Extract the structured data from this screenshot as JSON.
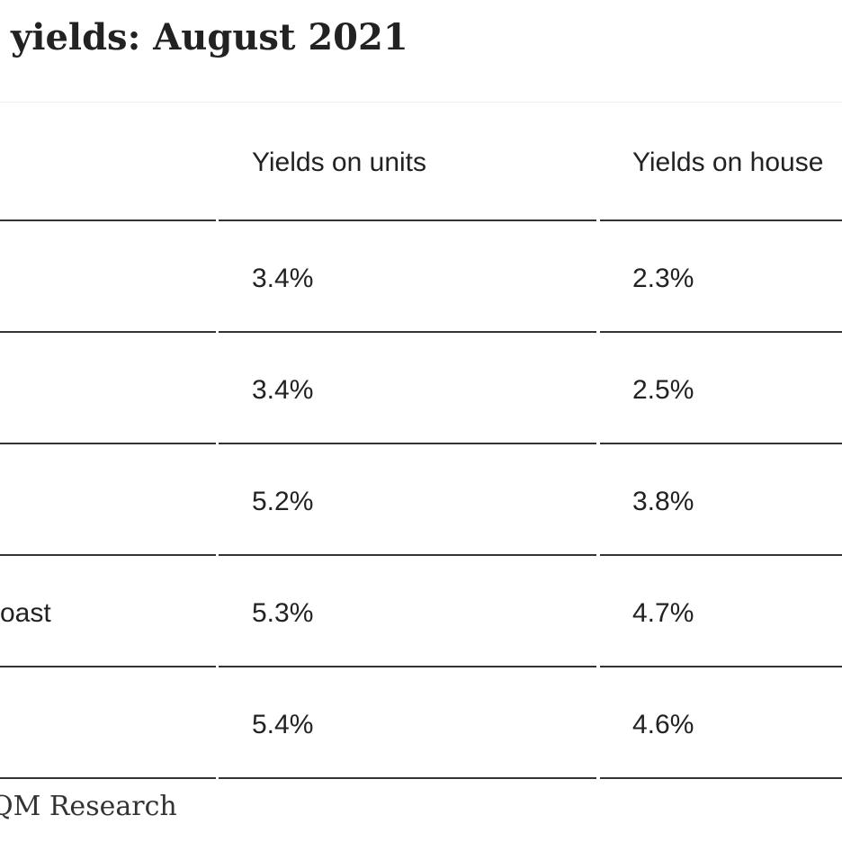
{
  "header": {
    "title": "yields: August 2021"
  },
  "table": {
    "columns": [
      "Yields on units",
      "Yields on house"
    ],
    "rows": [
      {
        "units": "3.4%",
        "houses": "2.3%"
      },
      {
        "units": "3.4%",
        "houses": "2.5%"
      },
      {
        "units": "5.2%",
        "houses": "3.8%"
      },
      {
        "label": "oast",
        "units": "5.3%",
        "houses": "4.7%"
      },
      {
        "units": "5.4%",
        "houses": "4.6%"
      }
    ]
  },
  "source": "QM Research"
}
